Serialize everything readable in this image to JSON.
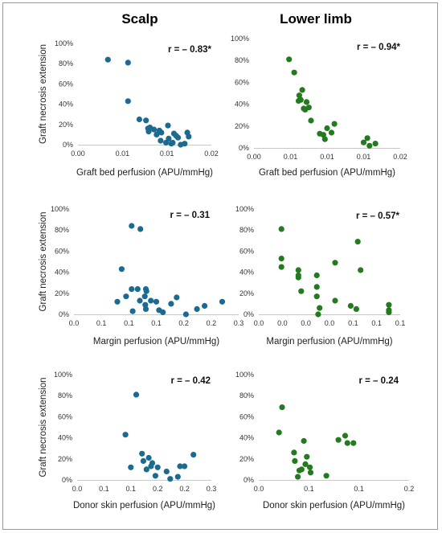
{
  "columns": [
    "Scalp",
    "Lower limb"
  ],
  "colors": {
    "scalp": "#1b6a8f",
    "lower_limb": "#247a1e"
  },
  "chart_data": [
    {
      "type": "scatter",
      "panel": "scalp-graft-bed",
      "color": "#1b6a8f",
      "r_label": "r = – 0.83*",
      "ylabel": "Graft necrosis extension",
      "xlabel": "Graft bed perfusion (APU/mmHg)",
      "xlim": [
        0,
        0.02
      ],
      "ylim": [
        0,
        100
      ],
      "xticks": [
        "0.00",
        "0.01",
        "0.01",
        "0.02"
      ],
      "yticks": [
        "0%",
        "20%",
        "40%",
        "60%",
        "80%",
        "100%"
      ],
      "x": [
        0.0045,
        0.0075,
        0.0075,
        0.0092,
        0.0102,
        0.0105,
        0.0106,
        0.0108,
        0.0114,
        0.0118,
        0.0122,
        0.0124,
        0.0125,
        0.0132,
        0.0135,
        0.0136,
        0.014,
        0.0142,
        0.0144,
        0.0147,
        0.015,
        0.0154,
        0.016,
        0.0164,
        0.0166
      ],
      "y": [
        84,
        81,
        43,
        25,
        24,
        16,
        13,
        17,
        15,
        10,
        14,
        4,
        12,
        2,
        19,
        6,
        1,
        2,
        11,
        9,
        7,
        0,
        1,
        12,
        8
      ]
    },
    {
      "type": "scatter",
      "panel": "limb-graft-bed",
      "color": "#247a1e",
      "r_label": "r = – 0.94*",
      "ylabel": "",
      "xlabel": "Graft bed perfusion (APU/mmHg)",
      "xlim": [
        0,
        0.02
      ],
      "ylim": [
        0,
        100
      ],
      "xticks": [
        "0.00",
        "0.01",
        "0.01",
        "0.01",
        "0.02"
      ],
      "yticks": [
        "0%",
        "20%",
        "40%",
        "60%",
        "80%",
        "100%"
      ],
      "x": [
        0.0048,
        0.0055,
        0.0061,
        0.0062,
        0.0064,
        0.0066,
        0.0068,
        0.007,
        0.0072,
        0.0075,
        0.0078,
        0.009,
        0.0095,
        0.0097,
        0.01,
        0.0106,
        0.011,
        0.015,
        0.0155,
        0.0158,
        0.0166
      ],
      "y": [
        81,
        69,
        43,
        48,
        44,
        53,
        36,
        35,
        42,
        37,
        25,
        13,
        12,
        8,
        18,
        14,
        22,
        5,
        9,
        2,
        4
      ]
    },
    {
      "type": "scatter",
      "panel": "scalp-margin",
      "color": "#1b6a8f",
      "r_label": "r = – 0.31",
      "ylabel": "Graft necrosis extension",
      "xlabel": "Margin perfusion (APU/mmHg)",
      "xlim": [
        0,
        0.3
      ],
      "ylim": [
        0,
        100
      ],
      "xticks": [
        "0.0",
        "0.1",
        "0.1",
        "0.1",
        "0.2",
        "0.2",
        "0.3"
      ],
      "yticks": [
        "0%",
        "20%",
        "40%",
        "60%",
        "80%",
        "100%"
      ],
      "x": [
        0.079,
        0.087,
        0.095,
        0.105,
        0.105,
        0.107,
        0.116,
        0.12,
        0.121,
        0.129,
        0.13,
        0.131,
        0.131,
        0.132,
        0.14,
        0.15,
        0.155,
        0.162,
        0.177,
        0.187,
        0.204,
        0.224,
        0.238,
        0.27
      ],
      "y": [
        12,
        43,
        17,
        84,
        24,
        3,
        24,
        13,
        81,
        17,
        9,
        5,
        24,
        22,
        13,
        12,
        4,
        2,
        10,
        16,
        0,
        5,
        8,
        12
      ]
    },
    {
      "type": "scatter",
      "panel": "limb-margin",
      "color": "#247a1e",
      "r_label": "r = – 0.57*",
      "ylabel": "",
      "xlabel": "Margin perfusion (APU/mmHg)",
      "xlim": [
        0,
        0.5
      ],
      "ylim": [
        0,
        100
      ],
      "xticks": [
        "0.0",
        "0.0",
        "0.0",
        "0.0",
        "0.1",
        "0.1",
        "0.1"
      ],
      "yticks": [
        "0%",
        "20%",
        "40%",
        "60%",
        "80%",
        "100%"
      ],
      "x": [
        0.08,
        0.08,
        0.08,
        0.14,
        0.14,
        0.14,
        0.15,
        0.205,
        0.205,
        0.205,
        0.215,
        0.21,
        0.27,
        0.27,
        0.325,
        0.345,
        0.35,
        0.36,
        0.46,
        0.46,
        0.46
      ],
      "y": [
        81,
        53,
        45,
        42,
        37,
        35,
        22,
        37,
        26,
        17,
        6,
        0,
        49,
        13,
        8,
        5,
        69,
        42,
        9,
        4,
        2
      ]
    },
    {
      "type": "scatter",
      "panel": "scalp-donor",
      "color": "#1b6a8f",
      "r_label": "r = – 0.42",
      "ylabel": "Graft necrosis extension",
      "xlabel": "Donor skin perfusion (APU/mmHg)",
      "xlim": [
        0,
        0.3
      ],
      "ylim": [
        0,
        100
      ],
      "xticks": [
        "0.0",
        "0.1",
        "0.1",
        "0.2",
        "0.2",
        "0.3"
      ],
      "yticks": [
        "0%",
        "20%",
        "40%",
        "60%",
        "80%",
        "100%"
      ],
      "x": [
        0.108,
        0.12,
        0.132,
        0.145,
        0.148,
        0.155,
        0.16,
        0.165,
        0.168,
        0.175,
        0.18,
        0.2,
        0.208,
        0.225,
        0.23,
        0.24,
        0.26
      ],
      "y": [
        43,
        12,
        81,
        25,
        18,
        10,
        21,
        13,
        16,
        4,
        12,
        8,
        1,
        3,
        13,
        13,
        24
      ]
    },
    {
      "type": "scatter",
      "panel": "limb-donor",
      "color": "#247a1e",
      "r_label": "r = – 0.24",
      "ylabel": "",
      "xlabel": "Donor skin perfusion (APU/mmHg)",
      "xlim": [
        0,
        0.2
      ],
      "ylim": [
        0,
        100
      ],
      "xticks": [
        "0.0",
        "0.1",
        "0.1",
        "0.2"
      ],
      "yticks": [
        "0%",
        "20%",
        "40%",
        "60%",
        "80%",
        "100%"
      ],
      "x": [
        0.027,
        0.031,
        0.047,
        0.048,
        0.052,
        0.054,
        0.057,
        0.06,
        0.062,
        0.064,
        0.068,
        0.069,
        0.09,
        0.106,
        0.115,
        0.118,
        0.126
      ],
      "y": [
        45,
        69,
        26,
        18,
        3,
        9,
        10,
        37,
        15,
        22,
        12,
        7,
        4,
        38,
        42,
        35,
        35
      ]
    }
  ]
}
